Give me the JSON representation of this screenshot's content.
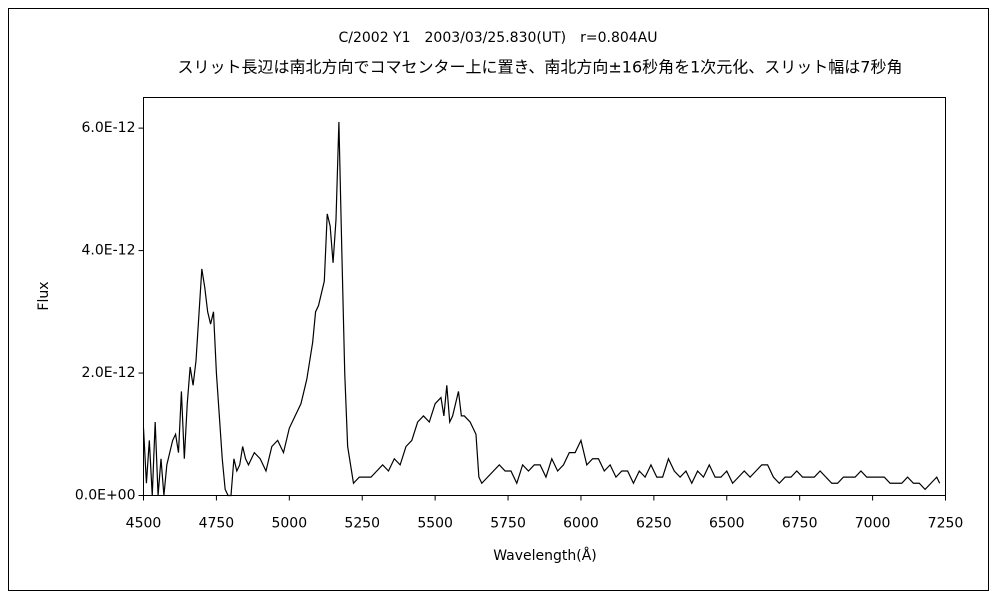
{
  "chart_data": {
    "type": "line",
    "title": "C/2002 Y1　2003/03/25.830(UT)　r=0.804AU",
    "subtitle": "スリット長辺は南北方向でコマセンター上に置き、南北方向±16秒角を1次元化、スリット幅は7秒角",
    "xlabel": "Wavelength(Å)",
    "ylabel": "Flux",
    "color": "#000000",
    "grid": false,
    "xlim": [
      4500,
      7250
    ],
    "xticks": [
      4500,
      4750,
      5000,
      5250,
      5500,
      5750,
      6000,
      6250,
      6500,
      6750,
      7000,
      7250
    ],
    "ylim": [
      0,
      6.5e-12
    ],
    "yticks": [
      {
        "value": 0,
        "label": "0.0E+00"
      },
      {
        "value": 2e-12,
        "label": "2.0E-12"
      },
      {
        "value": 4e-12,
        "label": "4.0E-12"
      },
      {
        "value": 6e-12,
        "label": "6.0E-12"
      }
    ],
    "x": [
      4500,
      4510,
      4520,
      4530,
      4540,
      4550,
      4560,
      4570,
      4580,
      4600,
      4610,
      4620,
      4630,
      4640,
      4650,
      4660,
      4670,
      4680,
      4700,
      4710,
      4720,
      4730,
      4740,
      4750,
      4760,
      4770,
      4780,
      4790,
      4800,
      4810,
      4820,
      4830,
      4840,
      4850,
      4860,
      4880,
      4900,
      4920,
      4940,
      4960,
      4980,
      5000,
      5020,
      5040,
      5060,
      5080,
      5090,
      5100,
      5120,
      5130,
      5140,
      5150,
      5160,
      5170,
      5180,
      5190,
      5200,
      5210,
      5220,
      5240,
      5260,
      5280,
      5300,
      5320,
      5340,
      5360,
      5380,
      5400,
      5420,
      5440,
      5460,
      5480,
      5500,
      5520,
      5530,
      5540,
      5550,
      5560,
      5580,
      5590,
      5600,
      5620,
      5640,
      5650,
      5660,
      5680,
      5700,
      5720,
      5740,
      5760,
      5780,
      5800,
      5820,
      5840,
      5860,
      5880,
      5900,
      5920,
      5940,
      5960,
      5980,
      6000,
      6020,
      6040,
      6060,
      6080,
      6100,
      6120,
      6140,
      6160,
      6180,
      6200,
      6220,
      6240,
      6260,
      6280,
      6300,
      6320,
      6340,
      6360,
      6380,
      6400,
      6420,
      6440,
      6460,
      6480,
      6500,
      6520,
      6540,
      6560,
      6580,
      6600,
      6620,
      6640,
      6660,
      6680,
      6700,
      6720,
      6740,
      6760,
      6780,
      6800,
      6820,
      6840,
      6860,
      6880,
      6900,
      6920,
      6940,
      6960,
      6980,
      7000,
      7020,
      7040,
      7060,
      7080,
      7100,
      7120,
      7140,
      7160,
      7180,
      7200,
      7220,
      7230
    ],
    "values": [
      1.1e-12,
      2e-13,
      9e-13,
      0,
      1.2e-12,
      0,
      6e-13,
      0,
      5e-13,
      9e-13,
      1e-12,
      7e-13,
      1.7e-12,
      6e-13,
      1.5e-12,
      2.1e-12,
      1.8e-12,
      2.2e-12,
      3.7e-12,
      3.4e-12,
      3e-12,
      2.8e-12,
      3e-12,
      2e-12,
      1.3e-12,
      6e-13,
      1e-13,
      0,
      0,
      6e-13,
      4e-13,
      5e-13,
      8e-13,
      6e-13,
      5e-13,
      7e-13,
      6e-13,
      4e-13,
      8e-13,
      9e-13,
      7e-13,
      1.1e-12,
      1.3e-12,
      1.5e-12,
      1.9e-12,
      2.5e-12,
      3e-12,
      3.1e-12,
      3.5e-12,
      4.6e-12,
      4.4e-12,
      3.8e-12,
      4.5e-12,
      6.1e-12,
      4e-12,
      2e-12,
      8e-13,
      5e-13,
      2e-13,
      3e-13,
      3e-13,
      3e-13,
      4e-13,
      5e-13,
      4e-13,
      6e-13,
      5e-13,
      8e-13,
      9e-13,
      1.2e-12,
      1.3e-12,
      1.2e-12,
      1.5e-12,
      1.6e-12,
      1.3e-12,
      1.8e-12,
      1.2e-12,
      1.3e-12,
      1.7e-12,
      1.3e-12,
      1.3e-12,
      1.2e-12,
      1e-12,
      3e-13,
      2e-13,
      3e-13,
      4e-13,
      5e-13,
      4e-13,
      4e-13,
      2e-13,
      5e-13,
      4e-13,
      5e-13,
      5e-13,
      3e-13,
      6e-13,
      4e-13,
      5e-13,
      7e-13,
      7e-13,
      9e-13,
      5e-13,
      6e-13,
      6e-13,
      4e-13,
      5e-13,
      3e-13,
      4e-13,
      4e-13,
      2e-13,
      4e-13,
      3e-13,
      5e-13,
      3e-13,
      3e-13,
      6e-13,
      4e-13,
      3e-13,
      4e-13,
      2e-13,
      4e-13,
      3e-13,
      5e-13,
      3e-13,
      3e-13,
      4e-13,
      2e-13,
      3e-13,
      4e-13,
      3e-13,
      4e-13,
      5e-13,
      5e-13,
      3e-13,
      2e-13,
      3e-13,
      3e-13,
      4e-13,
      3e-13,
      3e-13,
      3e-13,
      4e-13,
      3e-13,
      2e-13,
      2e-13,
      3e-13,
      3e-13,
      3e-13,
      4e-13,
      3e-13,
      3e-13,
      3e-13,
      3e-13,
      2e-13,
      2e-13,
      2e-13,
      3e-13,
      2e-13,
      2e-13,
      1e-13,
      2e-13,
      3e-13,
      2e-13
    ]
  }
}
